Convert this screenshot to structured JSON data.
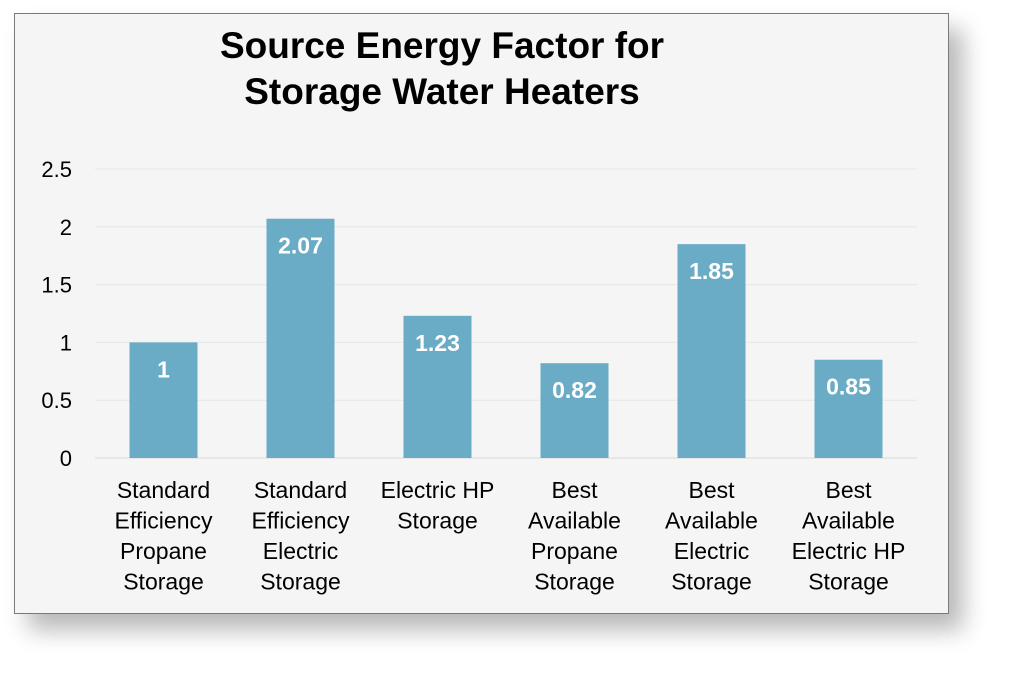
{
  "chart_data": {
    "type": "bar",
    "title": [
      "Source Energy Factor for",
      "Storage Water Heaters"
    ],
    "categories": [
      [
        "Standard",
        "Efficiency",
        "Propane",
        "Storage"
      ],
      [
        "Standard",
        "Efficiency",
        "Electric",
        "Storage"
      ],
      [
        "Electric HP",
        "Storage"
      ],
      [
        "Best",
        "Available",
        "Propane",
        "Storage"
      ],
      [
        "Best",
        "Available",
        "Electric",
        "Storage"
      ],
      [
        "Best",
        "Available",
        "Electric HP",
        "Storage"
      ]
    ],
    "values": [
      1,
      2.07,
      1.23,
      0.82,
      1.85,
      0.85
    ],
    "value_labels": [
      "1",
      "2.07",
      "1.23",
      "0.82",
      "1.85",
      "0.85"
    ],
    "ylim": [
      0,
      2.5
    ],
    "yticks": [
      0,
      0.5,
      1,
      1.5,
      2,
      2.5
    ],
    "ytick_labels": [
      "0",
      "0.5",
      "1",
      "1.5",
      "2",
      "2.5"
    ],
    "xlabel": "",
    "ylabel": "",
    "grid": true,
    "legend": "none",
    "colors": {
      "bar": "#6aabc5",
      "grid": "#e6e6e6",
      "background": "#f5f5f5"
    }
  }
}
